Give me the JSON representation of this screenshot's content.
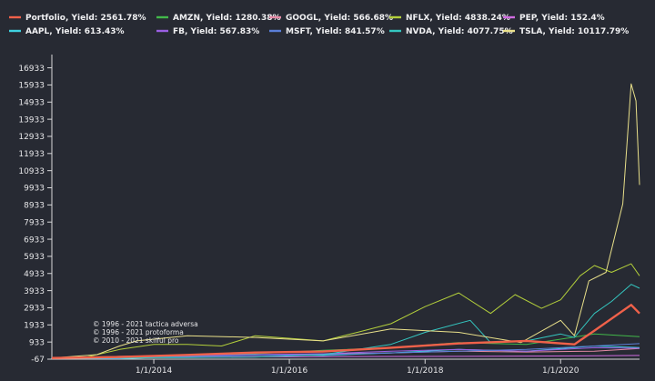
{
  "chart_data": {
    "type": "line",
    "title": "",
    "xlabel": "",
    "ylabel": "",
    "xlim": [
      "2012-07-01",
      "2021-03-01"
    ],
    "ylim": [
      -67,
      17600
    ],
    "y_ticks": [
      -67,
      933,
      1933,
      2933,
      3933,
      4933,
      5933,
      6933,
      7933,
      8933,
      9933,
      10933,
      11933,
      12933,
      13933,
      14933,
      15933,
      16933
    ],
    "x_ticks": [
      {
        "date": "2014-01-01",
        "label": "1/1/2014"
      },
      {
        "date": "2016-01-01",
        "label": "1/1/2016"
      },
      {
        "date": "2018-01-01",
        "label": "1/1/2018"
      },
      {
        "date": "2020-01-01",
        "label": "1/1/2020"
      }
    ],
    "grid": false,
    "legend_position": "top",
    "series": [
      {
        "name": "Portfolio, Yield: 2561.78%",
        "color": "#f0614a",
        "width": 2.4,
        "points": [
          [
            "2012-07-01",
            0
          ],
          [
            "2013-07-01",
            60
          ],
          [
            "2014-07-01",
            180
          ],
          [
            "2015-07-01",
            320
          ],
          [
            "2016-07-01",
            380
          ],
          [
            "2017-07-01",
            600
          ],
          [
            "2018-07-01",
            850
          ],
          [
            "2019-07-01",
            1000
          ],
          [
            "2020-03-15",
            800
          ],
          [
            "2020-07-01",
            1600
          ],
          [
            "2021-01-15",
            3100
          ],
          [
            "2021-03-01",
            2600
          ]
        ]
      },
      {
        "name": "AMZN, Yield: 1280.38%",
        "color": "#42b84a",
        "width": 1,
        "points": [
          [
            "2012-07-01",
            0
          ],
          [
            "2013-07-01",
            80
          ],
          [
            "2014-07-01",
            100
          ],
          [
            "2015-07-01",
            250
          ],
          [
            "2016-07-01",
            450
          ],
          [
            "2017-07-01",
            600
          ],
          [
            "2018-07-01",
            900
          ],
          [
            "2019-07-01",
            800
          ],
          [
            "2020-07-01",
            1400
          ],
          [
            "2021-03-01",
            1250
          ]
        ]
      },
      {
        "name": "GOOGL, Yield: 566.68%",
        "color": "#e58aa6",
        "width": 1,
        "points": [
          [
            "2012-07-01",
            0
          ],
          [
            "2013-07-01",
            100
          ],
          [
            "2014-07-01",
            150
          ],
          [
            "2015-07-01",
            150
          ],
          [
            "2016-07-01",
            250
          ],
          [
            "2017-07-01",
            300
          ],
          [
            "2018-07-01",
            400
          ],
          [
            "2019-07-01",
            350
          ],
          [
            "2020-07-01",
            400
          ],
          [
            "2021-03-01",
            560
          ]
        ]
      },
      {
        "name": "NFLX, Yield: 4838.24%",
        "color": "#b3cf3b",
        "width": 1,
        "points": [
          [
            "2012-07-01",
            0
          ],
          [
            "2013-01-01",
            50
          ],
          [
            "2013-07-01",
            500
          ],
          [
            "2014-01-01",
            800
          ],
          [
            "2014-07-01",
            800
          ],
          [
            "2015-01-01",
            700
          ],
          [
            "2015-07-01",
            1300
          ],
          [
            "2016-07-01",
            1000
          ],
          [
            "2017-01-01",
            1500
          ],
          [
            "2017-07-01",
            2000
          ],
          [
            "2018-01-01",
            3000
          ],
          [
            "2018-07-01",
            3800
          ],
          [
            "2018-12-20",
            2600
          ],
          [
            "2019-05-01",
            3700
          ],
          [
            "2019-09-20",
            2900
          ],
          [
            "2020-01-01",
            3400
          ],
          [
            "2020-04-15",
            4800
          ],
          [
            "2020-07-01",
            5400
          ],
          [
            "2020-10-01",
            5000
          ],
          [
            "2021-01-15",
            5500
          ],
          [
            "2021-03-01",
            4800
          ]
        ]
      },
      {
        "name": "PEP, Yield: 152.4%",
        "color": "#d06be0",
        "width": 1,
        "points": [
          [
            "2012-07-01",
            0
          ],
          [
            "2014-07-01",
            50
          ],
          [
            "2016-07-01",
            80
          ],
          [
            "2018-07-01",
            100
          ],
          [
            "2020-07-01",
            130
          ],
          [
            "2021-03-01",
            150
          ]
        ]
      },
      {
        "name": "AAPL, Yield: 613.43%",
        "color": "#3fd1e0",
        "width": 1,
        "points": [
          [
            "2012-07-01",
            0
          ],
          [
            "2013-07-01",
            -40
          ],
          [
            "2014-07-01",
            100
          ],
          [
            "2015-07-01",
            200
          ],
          [
            "2016-07-01",
            150
          ],
          [
            "2017-07-01",
            300
          ],
          [
            "2018-07-01",
            500
          ],
          [
            "2019-07-01",
            400
          ],
          [
            "2020-07-01",
            700
          ],
          [
            "2021-03-01",
            610
          ]
        ]
      },
      {
        "name": "FB, Yield: 567.83%",
        "color": "#9a5fe2",
        "width": 1,
        "points": [
          [
            "2012-07-01",
            0
          ],
          [
            "2013-07-01",
            0
          ],
          [
            "2014-07-01",
            150
          ],
          [
            "2015-07-01",
            200
          ],
          [
            "2016-07-01",
            250
          ],
          [
            "2017-07-01",
            400
          ],
          [
            "2018-07-01",
            500
          ],
          [
            "2019-07-01",
            400
          ],
          [
            "2020-07-01",
            600
          ],
          [
            "2021-03-01",
            570
          ]
        ]
      },
      {
        "name": "MSFT, Yield: 841.57%",
        "color": "#5a7fd8",
        "width": 1,
        "points": [
          [
            "2012-07-01",
            0
          ],
          [
            "2013-07-01",
            50
          ],
          [
            "2014-07-01",
            100
          ],
          [
            "2015-07-01",
            150
          ],
          [
            "2016-07-01",
            200
          ],
          [
            "2017-07-01",
            300
          ],
          [
            "2018-07-01",
            400
          ],
          [
            "2019-07-01",
            500
          ],
          [
            "2020-07-01",
            700
          ],
          [
            "2021-03-01",
            840
          ]
        ]
      },
      {
        "name": "NVDA, Yield: 4077.75%",
        "color": "#34c6c0",
        "width": 1,
        "points": [
          [
            "2012-07-01",
            0
          ],
          [
            "2014-07-01",
            30
          ],
          [
            "2015-07-01",
            50
          ],
          [
            "2016-07-01",
            200
          ],
          [
            "2017-07-01",
            800
          ],
          [
            "2018-01-01",
            1500
          ],
          [
            "2018-09-01",
            2200
          ],
          [
            "2018-12-20",
            900
          ],
          [
            "2019-07-01",
            1000
          ],
          [
            "2020-01-01",
            1400
          ],
          [
            "2020-03-15",
            1200
          ],
          [
            "2020-07-01",
            2600
          ],
          [
            "2020-10-01",
            3300
          ],
          [
            "2021-01-15",
            4300
          ],
          [
            "2021-03-01",
            4070
          ]
        ]
      },
      {
        "name": "TSLA, Yield: 10117.79%",
        "color": "#e9e08a",
        "width": 1,
        "points": [
          [
            "2012-07-01",
            0
          ],
          [
            "2013-03-01",
            200
          ],
          [
            "2013-07-01",
            700
          ],
          [
            "2013-10-01",
            1000
          ],
          [
            "2014-07-01",
            1300
          ],
          [
            "2015-07-01",
            1200
          ],
          [
            "2016-07-01",
            1000
          ],
          [
            "2017-07-01",
            1700
          ],
          [
            "2018-07-01",
            1500
          ],
          [
            "2019-06-01",
            900
          ],
          [
            "2020-01-01",
            2200
          ],
          [
            "2020-03-15",
            1300
          ],
          [
            "2020-06-01",
            4500
          ],
          [
            "2020-09-01",
            5000
          ],
          [
            "2020-12-01",
            9000
          ],
          [
            "2021-01-15",
            16000
          ],
          [
            "2021-02-10",
            15000
          ],
          [
            "2021-03-01",
            10100
          ]
        ]
      }
    ],
    "annotations": [
      "© 1996 - 2021 tactica adversa",
      "© 1996 - 2021 protoforma",
      "© 2010 - 2021 skilful pro"
    ]
  }
}
